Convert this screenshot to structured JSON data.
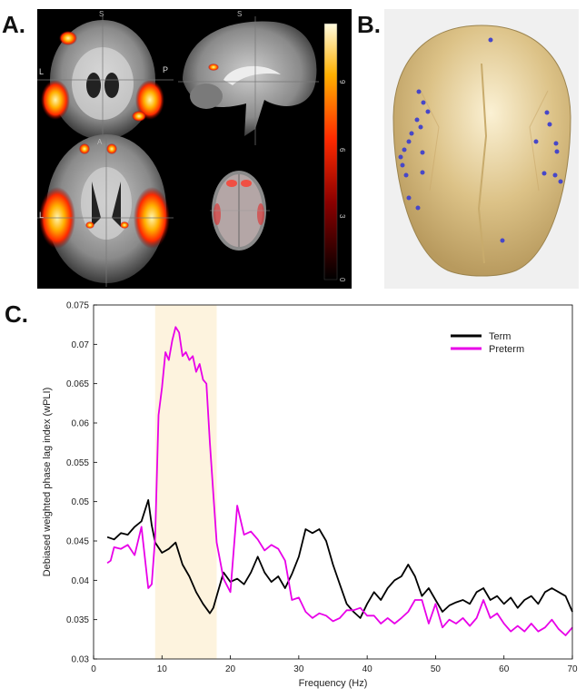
{
  "panel_labels": {
    "a": "A.",
    "b": "B.",
    "c": "C."
  },
  "panel_a": {
    "coronal_orient": {
      "top": "S",
      "left": "L"
    },
    "sagittal_orient": {
      "top": "S",
      "left": "P"
    },
    "axial_orient": {
      "top": "A",
      "left": "L"
    },
    "colorbar_ticks": [
      "9",
      "6",
      "3",
      "0"
    ],
    "colors": {
      "hot_low": "#7a0000",
      "hot_mid": "#ff2a00",
      "hot_high": "#fff6b0"
    }
  },
  "panel_b": {
    "colors": {
      "scalp": "#d9b877",
      "electrode": "#4747c8"
    }
  },
  "chart_data": {
    "type": "line",
    "xlabel": "Frequency (Hz)",
    "ylabel": "Debiased weighted phase lag index (wPLI)",
    "xlim": [
      0,
      70
    ],
    "ylim": [
      0.03,
      0.075
    ],
    "x_ticks": [
      "0",
      "10",
      "20",
      "30",
      "40",
      "50",
      "60",
      "70"
    ],
    "y_ticks": [
      "0.03",
      "0.035",
      "0.04",
      "0.045",
      "0.05",
      "0.055",
      "0.06",
      "0.065",
      "0.07",
      "0.075"
    ],
    "highlight_band": [
      9,
      18
    ],
    "highlight_color": "#fdf3de",
    "legend": {
      "placement": "top-right"
    },
    "series": [
      {
        "name": "Term",
        "color": "#000000",
        "x": [
          2,
          3,
          4,
          5,
          6,
          7,
          8,
          8.5,
          9,
          10,
          11,
          12,
          13,
          14,
          15,
          16,
          17,
          17.5,
          18,
          19,
          20,
          21,
          22,
          23,
          24,
          25,
          26,
          27,
          28,
          29,
          30,
          31,
          32,
          33,
          34,
          35,
          36,
          37,
          38,
          39,
          40,
          41,
          42,
          43,
          44,
          45,
          46,
          47,
          48,
          49,
          50,
          51,
          52,
          53,
          54,
          55,
          56,
          57,
          58,
          59,
          60,
          61,
          62,
          63,
          64,
          65,
          66,
          67,
          68,
          69,
          70
        ],
        "values": [
          0.0455,
          0.0452,
          0.046,
          0.0458,
          0.0468,
          0.0475,
          0.0502,
          0.047,
          0.0448,
          0.0435,
          0.044,
          0.0448,
          0.042,
          0.0405,
          0.0385,
          0.037,
          0.0358,
          0.0365,
          0.038,
          0.041,
          0.0398,
          0.0402,
          0.0395,
          0.041,
          0.043,
          0.041,
          0.0398,
          0.0405,
          0.039,
          0.0408,
          0.043,
          0.0465,
          0.046,
          0.0465,
          0.045,
          0.042,
          0.0395,
          0.037,
          0.036,
          0.0352,
          0.037,
          0.0385,
          0.0375,
          0.039,
          0.04,
          0.0405,
          0.042,
          0.0405,
          0.038,
          0.039,
          0.0375,
          0.036,
          0.0368,
          0.0372,
          0.0375,
          0.037,
          0.0385,
          0.039,
          0.0375,
          0.038,
          0.037,
          0.0378,
          0.0365,
          0.0375,
          0.038,
          0.037,
          0.0385,
          0.039,
          0.0385,
          0.038,
          0.036
        ]
      },
      {
        "name": "Preterm",
        "color": "#e800e8",
        "x": [
          2,
          2.5,
          3,
          4,
          5,
          6,
          7,
          8,
          8.5,
          9,
          9.5,
          10,
          10.5,
          11,
          11.5,
          12,
          12.5,
          13,
          13.5,
          14,
          14.5,
          15,
          15.5,
          16,
          16.5,
          17,
          17.5,
          18,
          19,
          20,
          21,
          22,
          23,
          24,
          25,
          26,
          27,
          28,
          29,
          30,
          31,
          32,
          33,
          34,
          35,
          36,
          37,
          38,
          39,
          40,
          41,
          42,
          43,
          44,
          45,
          46,
          47,
          48,
          49,
          50,
          51,
          52,
          53,
          54,
          55,
          56,
          57,
          58,
          59,
          60,
          61,
          62,
          63,
          64,
          65,
          66,
          67,
          68,
          69,
          70
        ],
        "values": [
          0.0422,
          0.0425,
          0.0442,
          0.044,
          0.0445,
          0.0432,
          0.0468,
          0.039,
          0.0395,
          0.0455,
          0.061,
          0.0645,
          0.069,
          0.068,
          0.0705,
          0.0722,
          0.0715,
          0.0685,
          0.069,
          0.068,
          0.0685,
          0.0665,
          0.0675,
          0.0655,
          0.065,
          0.0575,
          0.051,
          0.0448,
          0.0402,
          0.0385,
          0.0495,
          0.0458,
          0.0462,
          0.0452,
          0.0438,
          0.0445,
          0.044,
          0.0425,
          0.0375,
          0.0378,
          0.036,
          0.0352,
          0.0358,
          0.0355,
          0.0348,
          0.0352,
          0.0362,
          0.0362,
          0.0365,
          0.0355,
          0.0355,
          0.0345,
          0.0352,
          0.0345,
          0.0352,
          0.036,
          0.0375,
          0.0375,
          0.0345,
          0.037,
          0.034,
          0.035,
          0.0345,
          0.0352,
          0.0342,
          0.0352,
          0.0375,
          0.0352,
          0.0358,
          0.0345,
          0.0335,
          0.0342,
          0.0335,
          0.0345,
          0.0335,
          0.034,
          0.035,
          0.0338,
          0.033,
          0.034
        ]
      }
    ]
  }
}
